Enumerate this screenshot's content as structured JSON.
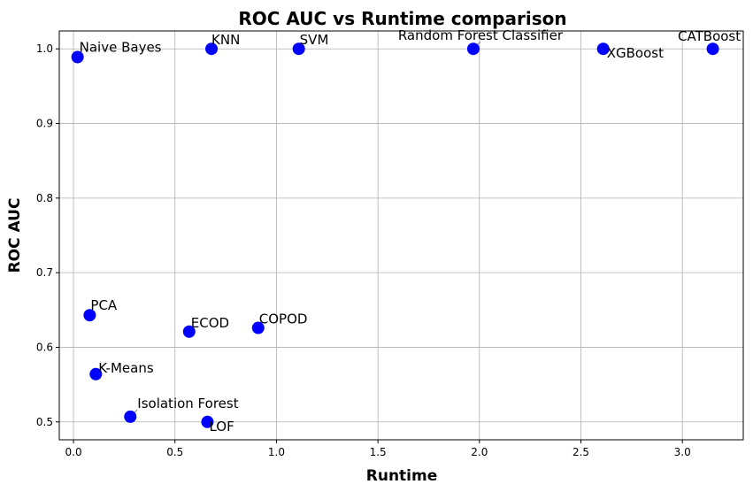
{
  "chart_data": {
    "type": "scatter",
    "title": "ROC AUC vs Runtime comparison",
    "xlabel": "Runtime",
    "ylabel": "ROC AUC",
    "xlim": [
      -0.07,
      3.3
    ],
    "ylim": [
      0.476,
      1.024
    ],
    "xticks": [
      0.0,
      0.5,
      1.0,
      1.5,
      2.0,
      2.5,
      3.0
    ],
    "xtick_labels": [
      "0.0",
      "0.5",
      "1.0",
      "1.5",
      "2.0",
      "2.5",
      "3.0"
    ],
    "yticks": [
      0.5,
      0.6,
      0.7,
      0.8,
      0.9,
      1.0
    ],
    "ytick_labels": [
      "0.5",
      "0.6",
      "0.7",
      "0.8",
      "0.9",
      "1.0"
    ],
    "grid": true,
    "marker_color": "#0000ff",
    "leader_line_color": "#808080",
    "points": [
      {
        "label": "Naive Bayes",
        "x": 0.02,
        "y": 0.989
      },
      {
        "label": "KNN",
        "x": 0.68,
        "y": 1.0
      },
      {
        "label": "SVM",
        "x": 1.11,
        "y": 1.0
      },
      {
        "label": "Random Forest Classifier",
        "x": 1.97,
        "y": 1.0
      },
      {
        "label": "XGBoost",
        "x": 2.61,
        "y": 1.0
      },
      {
        "label": "CATBoost",
        "x": 3.15,
        "y": 1.0
      },
      {
        "label": "PCA",
        "x": 0.08,
        "y": 0.643
      },
      {
        "label": "ECOD",
        "x": 0.57,
        "y": 0.621
      },
      {
        "label": "COPOD",
        "x": 0.91,
        "y": 0.626
      },
      {
        "label": "K-Means",
        "x": 0.11,
        "y": 0.564
      },
      {
        "label": "Isolation Forest",
        "x": 0.28,
        "y": 0.507
      },
      {
        "label": "LOF",
        "x": 0.66,
        "y": 0.5
      }
    ]
  }
}
